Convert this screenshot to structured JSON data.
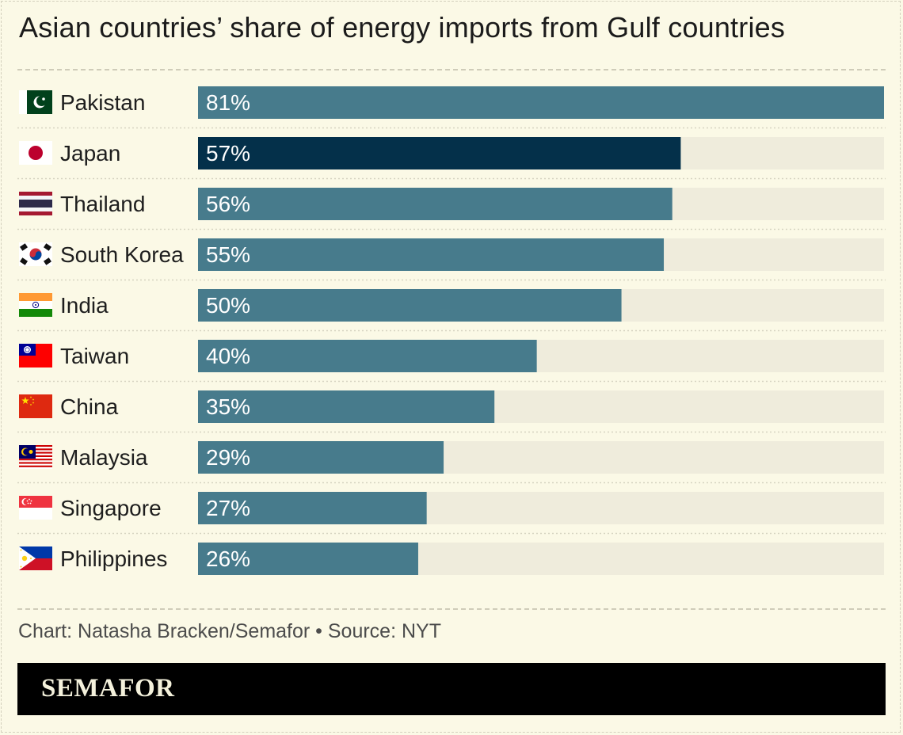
{
  "chart_data": {
    "type": "bar",
    "orientation": "horizontal",
    "title": "Asian countries’ share of energy imports from Gulf countries",
    "categories": [
      "Pakistan",
      "Japan",
      "Thailand",
      "South Korea",
      "India",
      "Taiwan",
      "China",
      "Malaysia",
      "Singapore",
      "Philippines"
    ],
    "values": [
      81,
      57,
      56,
      55,
      50,
      40,
      35,
      29,
      27,
      26
    ],
    "value_labels": [
      "81%",
      "57%",
      "56%",
      "55%",
      "50%",
      "40%",
      "35%",
      "29%",
      "27%",
      "26%"
    ],
    "flags": [
      "pakistan-flag-icon",
      "japan-flag-icon",
      "thailand-flag-icon",
      "south-korea-flag-icon",
      "india-flag-icon",
      "taiwan-flag-icon",
      "china-flag-icon",
      "malaysia-flag-icon",
      "singapore-flag-icon",
      "philippines-flag-icon"
    ],
    "highlight": "Japan",
    "xlim": [
      0,
      81
    ],
    "unit": "%",
    "grid": false,
    "colors": {
      "bar": "#477b8c",
      "highlight": "#04304a",
      "track": "#efecdc",
      "label": "#ffffff",
      "category_text": "#1e1e1e"
    }
  },
  "credit": "Chart: Natasha Bracken/Semafor • Source: NYT",
  "footer": {
    "logo": "SEMAFOR"
  },
  "colors": {
    "background": "#fbf9e6",
    "footer": "#000000"
  }
}
